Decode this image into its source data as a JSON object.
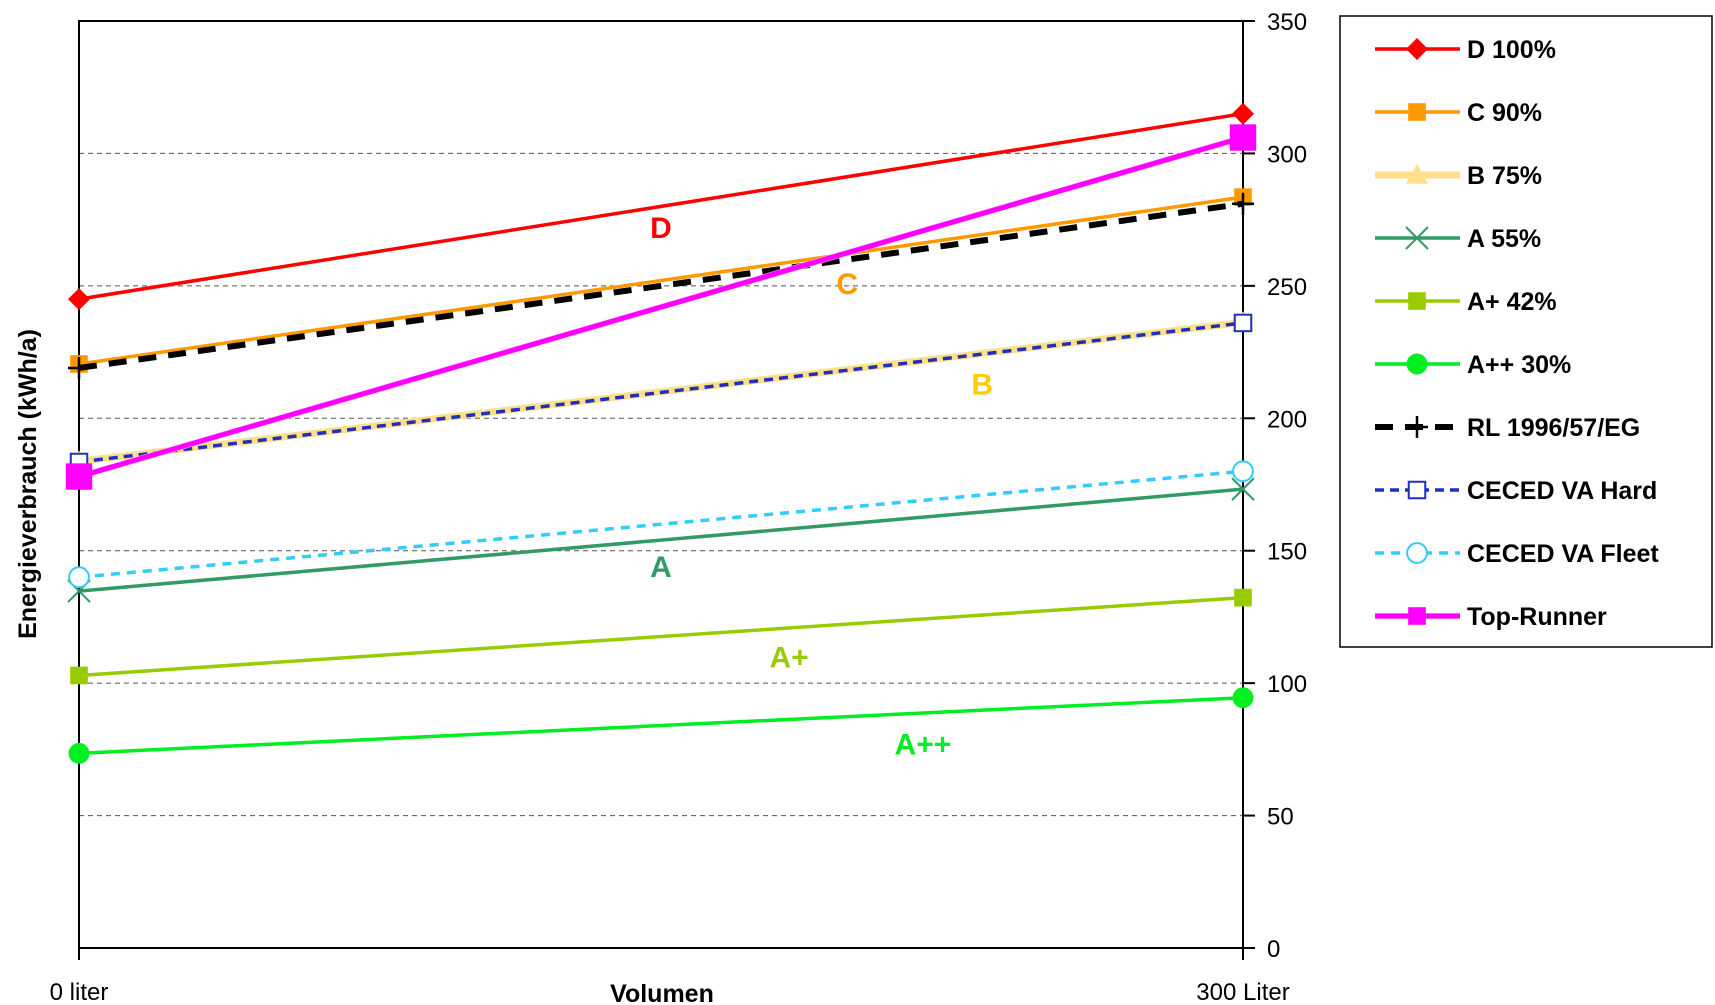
{
  "chart_data": {
    "type": "line",
    "title": "",
    "xlabel": "Volumen",
    "ylabel": "Energieverbrauch (kWh/a)",
    "x_categories": [
      "0 liter",
      "300 Liter"
    ],
    "ylim": [
      0,
      350
    ],
    "yticks": [
      0,
      50,
      100,
      150,
      200,
      250,
      300,
      350
    ],
    "y_axis_side": "right",
    "grid": "horizontal-dashed",
    "legend_position": "right",
    "series": [
      {
        "name": "D 100%",
        "values": [
          245,
          315
        ],
        "color": "#ff0000",
        "marker": "diamond",
        "dash": "solid"
      },
      {
        "name": "C 90%",
        "values": [
          220.5,
          283.5
        ],
        "color": "#ff9900",
        "marker": "square",
        "dash": "solid"
      },
      {
        "name": "B 75%",
        "values": [
          183.75,
          236.25
        ],
        "color": "#ffe08a",
        "marker": "triangle",
        "dash": "solid"
      },
      {
        "name": "A 55%",
        "values": [
          134.75,
          173.25
        ],
        "color": "#339966",
        "marker": "x",
        "dash": "solid"
      },
      {
        "name": "A+ 42%",
        "values": [
          102.9,
          132.3
        ],
        "color": "#99cc00",
        "marker": "square",
        "dash": "solid"
      },
      {
        "name": "A++ 30%",
        "values": [
          73.5,
          94.5
        ],
        "color": "#00ee22",
        "marker": "circle",
        "dash": "solid"
      },
      {
        "name": "RL 1996/57/EG",
        "values": [
          219,
          281
        ],
        "color": "#000000",
        "marker": "plus",
        "dash": "dashed"
      },
      {
        "name": "CECED VA Hard",
        "values": [
          183.5,
          236
        ],
        "color": "#1f2fbf",
        "marker": "open-square",
        "dash": "dashed"
      },
      {
        "name": "CECED VA Fleet",
        "values": [
          140,
          180
        ],
        "color": "#33ccff",
        "marker": "open-circle",
        "dash": "dashed"
      },
      {
        "name": "Top-Runner",
        "values": [
          178,
          306
        ],
        "color": "#ff00ff",
        "marker": "square-large",
        "dash": "solid"
      }
    ],
    "annotations": [
      {
        "text": "D",
        "color": "#ff0000",
        "x": 0.5,
        "y": 268
      },
      {
        "text": "C",
        "color": "#ff9900",
        "x": 0.66,
        "y": 247
      },
      {
        "text": "B",
        "color": "#ffcc00",
        "x": 0.776,
        "y": 209
      },
      {
        "text": "A",
        "color": "#339966",
        "x": 0.5,
        "y": 140
      },
      {
        "text": "A+",
        "color": "#99cc00",
        "x": 0.61,
        "y": 106
      },
      {
        "text": "A++",
        "color": "#00ee22",
        "x": 0.725,
        "y": 73
      }
    ]
  }
}
